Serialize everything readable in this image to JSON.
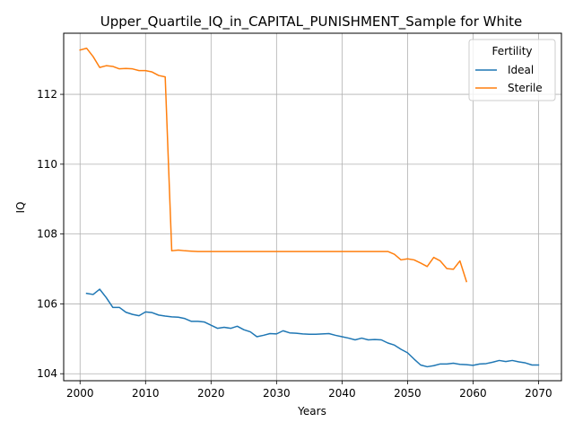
{
  "chart_data": {
    "type": "line",
    "title": "Upper_Quartile_IQ_in_CAPITAL_PUNISHMENT_Sample for White",
    "xlabel": "Years",
    "ylabel": "IQ",
    "xlim": [
      1997.5,
      2073.5
    ],
    "ylim": [
      103.8,
      113.75
    ],
    "xticks": [
      2000,
      2010,
      2020,
      2030,
      2040,
      2050,
      2060,
      2070
    ],
    "yticks": [
      104,
      106,
      108,
      110,
      112
    ],
    "grid": true,
    "legend": {
      "title": "Fertility",
      "placement": "top-right"
    },
    "series": [
      {
        "name": "Ideal",
        "color": "#1f77b4",
        "x": [
          2001,
          2002,
          2003,
          2004,
          2005,
          2006,
          2007,
          2008,
          2009,
          2010,
          2011,
          2012,
          2013,
          2014,
          2015,
          2016,
          2017,
          2018,
          2019,
          2020,
          2021,
          2022,
          2023,
          2024,
          2025,
          2026,
          2027,
          2028,
          2029,
          2030,
          2031,
          2032,
          2033,
          2034,
          2035,
          2036,
          2037,
          2038,
          2039,
          2040,
          2041,
          2042,
          2043,
          2044,
          2045,
          2046,
          2047,
          2048,
          2049,
          2050,
          2051,
          2052,
          2053,
          2054,
          2055,
          2056,
          2057,
          2058,
          2059,
          2060,
          2061,
          2062,
          2063,
          2064,
          2065,
          2066,
          2067,
          2068,
          2069,
          2070
        ],
        "values": [
          106.3,
          106.27,
          106.42,
          106.18,
          105.9,
          105.9,
          105.76,
          105.7,
          105.66,
          105.77,
          105.75,
          105.68,
          105.65,
          105.63,
          105.62,
          105.58,
          105.5,
          105.5,
          105.48,
          105.39,
          105.3,
          105.33,
          105.3,
          105.36,
          105.26,
          105.2,
          105.06,
          105.1,
          105.15,
          105.14,
          105.23,
          105.17,
          105.16,
          105.14,
          105.13,
          105.13,
          105.14,
          105.15,
          105.1,
          105.06,
          105.02,
          104.97,
          105.02,
          104.97,
          104.98,
          104.97,
          104.88,
          104.82,
          104.7,
          104.6,
          104.42,
          104.25,
          104.2,
          104.23,
          104.28,
          104.28,
          104.3,
          104.27,
          104.26,
          104.24,
          104.28,
          104.29,
          104.33,
          104.38,
          104.35,
          104.38,
          104.34,
          104.31,
          104.25,
          104.25
        ]
      },
      {
        "name": "Sterile",
        "color": "#ff7f0e",
        "x": [
          2000,
          2001,
          2002,
          2003,
          2004,
          2005,
          2006,
          2007,
          2008,
          2009,
          2010,
          2011,
          2012,
          2013,
          2014,
          2015,
          2016,
          2017,
          2018,
          2019,
          2020,
          2021,
          2022,
          2023,
          2024,
          2025,
          2026,
          2027,
          2028,
          2029,
          2030,
          2031,
          2032,
          2033,
          2034,
          2035,
          2036,
          2037,
          2038,
          2039,
          2040,
          2041,
          2042,
          2043,
          2044,
          2045,
          2046,
          2047,
          2048,
          2049,
          2050,
          2051,
          2052,
          2053,
          2054,
          2055,
          2056,
          2057,
          2058,
          2059
        ],
        "values": [
          113.27,
          113.32,
          113.08,
          112.77,
          112.82,
          112.8,
          112.73,
          112.74,
          112.73,
          112.68,
          112.68,
          112.64,
          112.54,
          112.5,
          107.52,
          107.54,
          107.52,
          107.51,
          107.5,
          107.5,
          107.5,
          107.5,
          107.5,
          107.5,
          107.5,
          107.5,
          107.5,
          107.5,
          107.5,
          107.5,
          107.5,
          107.5,
          107.5,
          107.5,
          107.5,
          107.5,
          107.5,
          107.5,
          107.5,
          107.5,
          107.5,
          107.5,
          107.5,
          107.5,
          107.5,
          107.5,
          107.5,
          107.5,
          107.42,
          107.26,
          107.29,
          107.26,
          107.17,
          107.07,
          107.33,
          107.23,
          107.01,
          106.99,
          107.23,
          106.64
        ]
      }
    ]
  }
}
